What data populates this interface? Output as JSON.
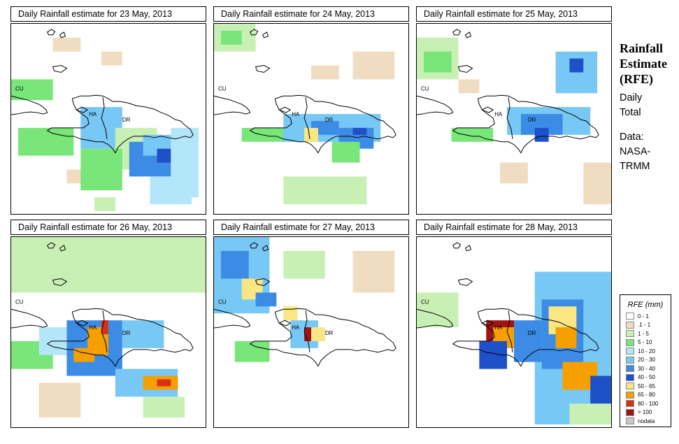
{
  "panels": [
    {
      "title": "Daily Rainfall estimate for  23 May, 2013",
      "labels": [
        "CU",
        "HA",
        "DR"
      ]
    },
    {
      "title": "Daily Rainfall estimate for  24 May, 2013",
      "labels": [
        "CU",
        "HA",
        "DR"
      ]
    },
    {
      "title": "Daily Rainfall estimate for  25 May, 2013",
      "labels": [
        "CU",
        "HA",
        "DR"
      ]
    },
    {
      "title": "Daily Rainfall estimate for  26 May, 2013",
      "labels": [
        "CU",
        "HA",
        "DR"
      ]
    },
    {
      "title": "Daily Rainfall estimate for  27 May, 2013",
      "labels": [
        "CU",
        "HA",
        "DR"
      ]
    },
    {
      "title": "Daily Rainfall estimate for  28 May, 2013",
      "labels": [
        "CU",
        "HA",
        "DR"
      ]
    }
  ],
  "side": {
    "title": "Rainfall\nEstimate\n(RFE)",
    "period": "Daily\nTotal",
    "source": "Data:\nNASA-\nTRMM"
  },
  "legend": {
    "title": "RFE (mm)",
    "entries": [
      {
        "label": "0 - 1",
        "color": "#ffffff"
      },
      {
        "label": ".1 - 1",
        "color": "#f0dcc0"
      },
      {
        "label": "1 - 5",
        "color": "#c8f0b4"
      },
      {
        "label": "5 - 10",
        "color": "#78e678"
      },
      {
        "label": "10 - 20",
        "color": "#b4e6fa"
      },
      {
        "label": "20 - 30",
        "color": "#78c8f5"
      },
      {
        "label": "30 - 40",
        "color": "#3c8ce6"
      },
      {
        "label": "40 - 50",
        "color": "#1e50c8"
      },
      {
        "label": "50 - 65",
        "color": "#fae682"
      },
      {
        "label": "65 - 80",
        "color": "#f5a000"
      },
      {
        "label": "80 - 100",
        "color": "#d73214"
      },
      {
        "label": "> 100",
        "color": "#a01414"
      },
      {
        "label": "nodata",
        "color": "#c8c8c8"
      }
    ]
  }
}
